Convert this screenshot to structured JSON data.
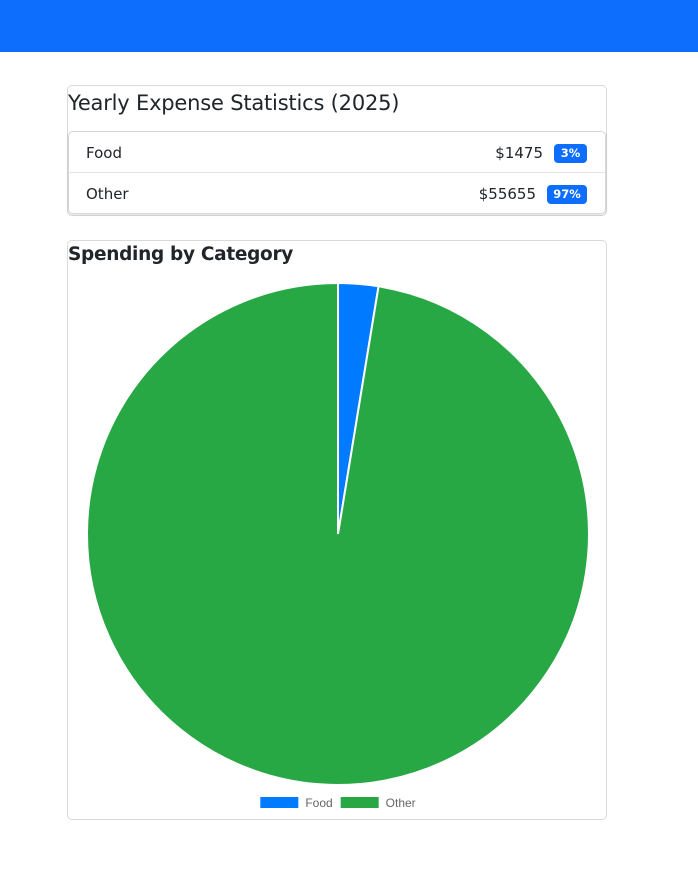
{
  "header": {
    "bar_color": "#0d6efd"
  },
  "stats": {
    "title": "Yearly Expense Statistics (2025)",
    "items": [
      {
        "label": "Food",
        "amount": "$1475",
        "percent": "3%"
      },
      {
        "label": "Other",
        "amount": "$55655",
        "percent": "97%"
      }
    ]
  },
  "chart_card": {
    "title": "Spending by Category"
  },
  "chart_data": {
    "type": "pie",
    "title": "Spending by Category",
    "categories": [
      "Food",
      "Other"
    ],
    "values": [
      1475,
      55655
    ],
    "colors": [
      "#007bff",
      "#28a745"
    ],
    "legend": {
      "position": "bottom",
      "entries": [
        "Food",
        "Other"
      ]
    }
  }
}
